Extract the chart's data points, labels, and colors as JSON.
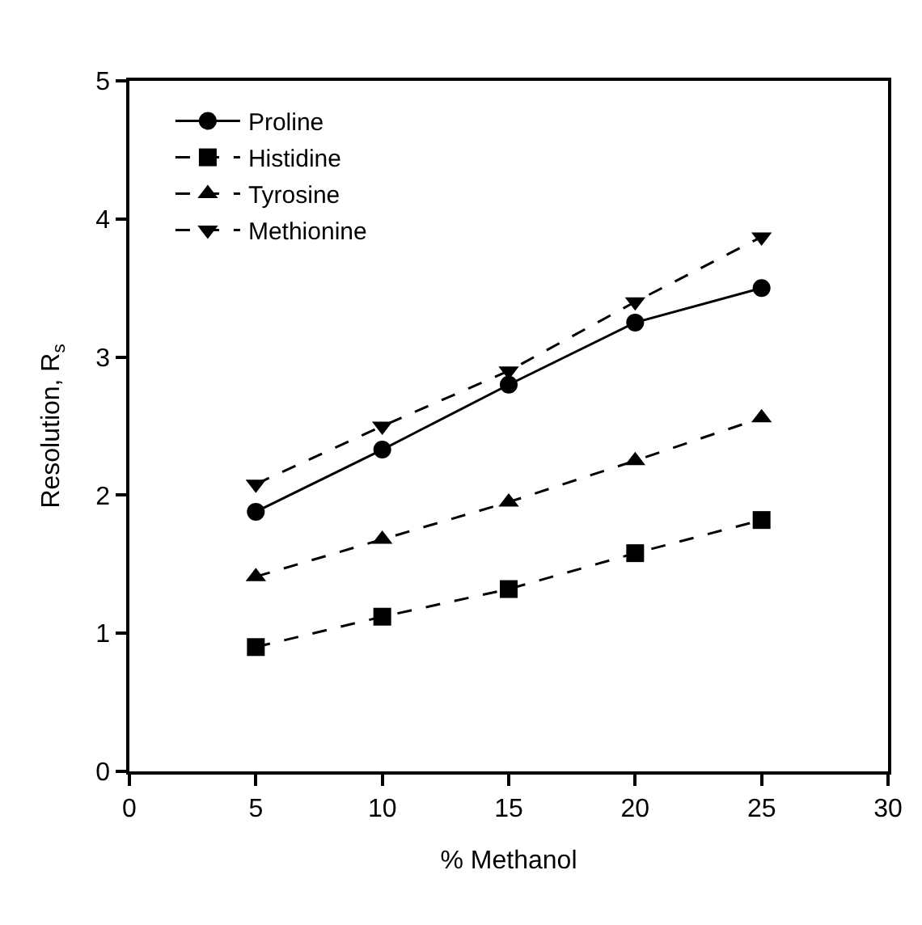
{
  "chart_data": {
    "type": "line",
    "xlabel": "% Methanol",
    "ylabel": "Resolution, R$_{s}$",
    "x": [
      5,
      10,
      15,
      20,
      25
    ],
    "series": [
      {
        "name": "Proline",
        "color": "#000000",
        "marker": "circle",
        "line_style": "solid",
        "values": [
          1.88,
          2.33,
          2.8,
          3.25,
          3.5
        ]
      },
      {
        "name": "Histidine",
        "color": "#000000",
        "marker": "square",
        "line_style": "dashed",
        "values": [
          0.9,
          1.12,
          1.32,
          1.58,
          1.82
        ]
      },
      {
        "name": "Tyrosine",
        "color": "#000000",
        "marker": "triangle",
        "line_style": "dashed",
        "values": [
          1.41,
          1.68,
          1.95,
          2.25,
          2.56
        ]
      },
      {
        "name": "Methionine",
        "color": "#000000",
        "marker": "triangle-down",
        "line_style": "dashed",
        "values": [
          2.08,
          2.5,
          2.9,
          3.4,
          3.87
        ]
      }
    ],
    "xlim": [
      0,
      30
    ],
    "xticks": [
      0,
      5,
      10,
      15,
      20,
      25,
      30
    ],
    "ylim": [
      0,
      5
    ],
    "yticks": [
      0,
      1,
      2,
      3,
      4,
      5
    ],
    "grid": false,
    "legend": "top left"
  }
}
